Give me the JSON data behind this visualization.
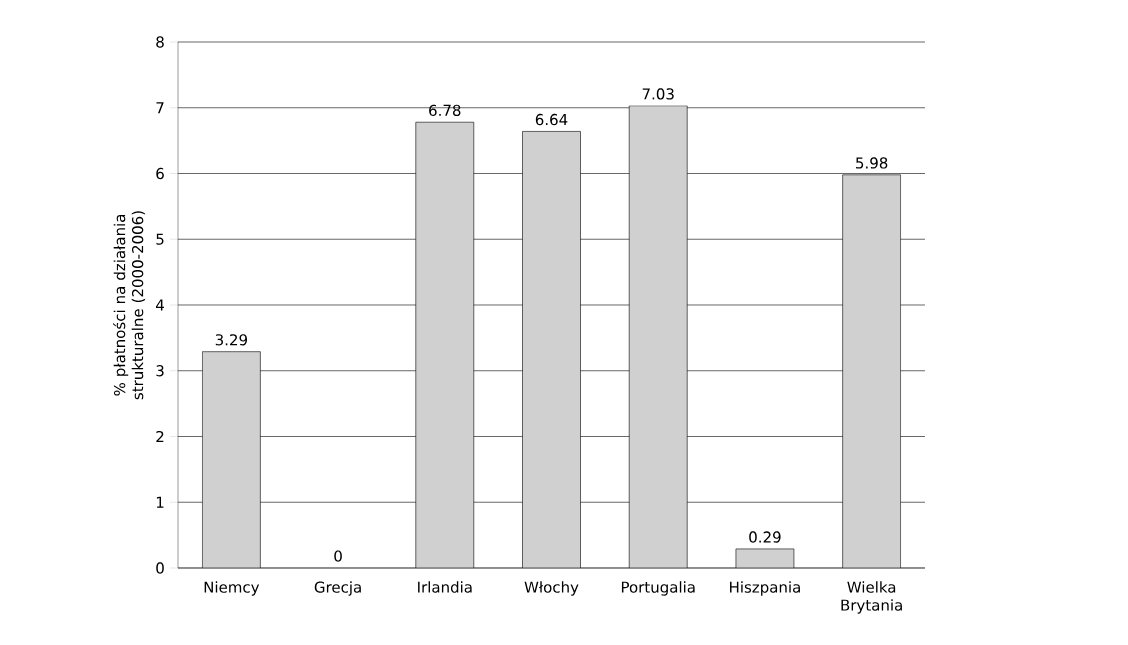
{
  "chart_data": {
    "type": "bar",
    "ylabel": "% płatności na działania strukturalne (2000-2006)",
    "categories": [
      "Niemcy",
      "Grecja",
      "Irlandia",
      "Włochy",
      "Portugalia",
      "Hiszpania",
      "Wielka Brytania"
    ],
    "values": [
      3.29,
      0,
      6.78,
      6.64,
      7.03,
      0.29,
      5.98
    ],
    "value_labels": [
      "3.29",
      "0",
      "6.78",
      "6.64",
      "7.03",
      "0.29",
      "5.98"
    ],
    "color": "#d0d0d0",
    "ylim": [
      0,
      8
    ],
    "yticks": [
      0,
      1,
      2,
      3,
      4,
      5,
      6,
      7,
      8
    ],
    "grid": "y"
  }
}
